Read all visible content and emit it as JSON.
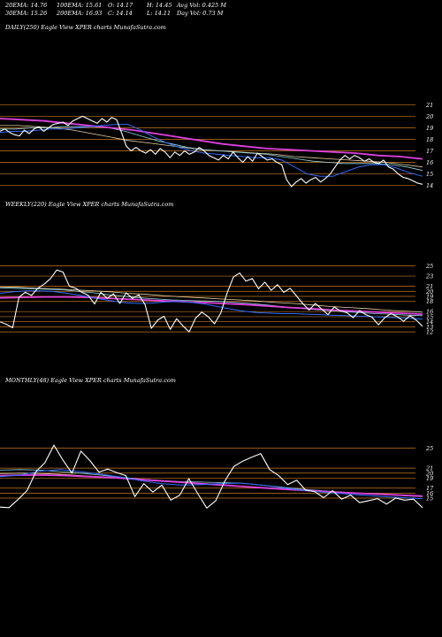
{
  "header": {
    "ema20": "20EMA: 14.76",
    "ema100": "100EMA: 15.61",
    "open": "O: 14.17",
    "high": "H: 14.45",
    "avgvol": "Avg Vol: 0.425 M",
    "ema30": "30EMA: 15.26",
    "ema200": "200EMA: 16.93",
    "close": "C: 14.14",
    "low": "L: 14.11",
    "dayvol": "Day Vol: 0.73 M"
  },
  "colors": {
    "background": "#000000",
    "price": "#ffffff",
    "level": "#c8781e",
    "ema_blue": "#2f6bff",
    "ema_cyan": "#8fd6e6",
    "ema_tan": "#e8d2a6",
    "ema_magenta": "#e040e0"
  },
  "chart_data": [
    {
      "type": "line",
      "label": "DAILY(250) Eagle   View  XPER charts MunafaSutra.com",
      "ylim": [
        13.2,
        21.8
      ],
      "y_ticks": [
        21,
        20,
        19,
        18,
        17,
        16,
        15,
        14
      ],
      "series": [
        {
          "role": "price",
          "values": [
            18.7,
            18.9,
            18.6,
            18.4,
            18.3,
            18.8,
            18.5,
            18.9,
            19.1,
            18.7,
            19.0,
            19.3,
            19.4,
            19.5,
            19.2,
            19.6,
            19.8,
            20.0,
            19.8,
            19.6,
            19.4,
            19.8,
            19.5,
            19.9,
            19.7,
            18.6,
            17.4,
            17.0,
            17.3,
            17.0,
            16.8,
            17.1,
            16.7,
            17.2,
            16.9,
            16.4,
            16.9,
            16.6,
            17.0,
            16.7,
            16.9,
            17.3,
            17.0,
            16.6,
            16.4,
            16.2,
            16.6,
            16.3,
            16.9,
            16.4,
            16.0,
            16.5,
            16.1,
            16.8,
            16.5,
            16.2,
            16.3,
            16.0,
            15.8,
            14.5,
            13.9,
            14.3,
            14.6,
            14.2,
            14.5,
            14.7,
            14.3,
            14.6,
            15.0,
            15.6,
            16.2,
            16.6,
            16.3,
            16.6,
            16.4,
            16.1,
            16.3,
            16.0,
            15.9,
            16.2,
            15.6,
            15.4,
            15.0,
            14.7,
            14.6,
            14.4,
            14.2,
            14.1
          ]
        },
        {
          "role": "ema_short",
          "values": [
            18.6,
            18.7,
            18.7,
            18.8,
            18.9,
            18.9,
            19.0,
            19.1,
            19.2,
            19.3,
            19.3,
            18.8,
            18.2,
            17.7,
            17.3,
            17.0,
            16.8,
            16.7,
            16.6,
            16.5,
            16.4,
            16.4,
            16.2,
            15.6,
            15.0,
            14.8,
            14.8,
            15.2,
            15.6,
            15.8,
            15.8,
            15.5,
            15.1,
            14.8
          ]
        },
        {
          "role": "ema_mid",
          "values": [
            18.9,
            18.9,
            19.0,
            19.0,
            19.1,
            19.1,
            19.1,
            19.0,
            18.7,
            18.3,
            17.9,
            17.6,
            17.3,
            17.1,
            17.0,
            16.9,
            16.8,
            16.7,
            16.5,
            16.3,
            16.1,
            16.0,
            15.9,
            15.9,
            15.9,
            15.8,
            15.6,
            15.3
          ]
        },
        {
          "role": "ema_long",
          "values": [
            19.2,
            19.2,
            19.1,
            19.0,
            18.8,
            18.5,
            18.2,
            17.9,
            17.7,
            17.5,
            17.3,
            17.1,
            17.0,
            16.9,
            16.8,
            16.7,
            16.5,
            16.4,
            16.3,
            16.2,
            16.1,
            16.0,
            15.8,
            15.6
          ]
        },
        {
          "role": "ema_200",
          "values": [
            19.8,
            19.7,
            19.6,
            19.4,
            19.2,
            19.0,
            18.8,
            18.5,
            18.2,
            17.9,
            17.6,
            17.4,
            17.2,
            17.1,
            17.0,
            16.9,
            16.8,
            16.6,
            16.5,
            16.3
          ]
        }
      ],
      "levels": [
        21,
        20,
        19,
        18,
        17,
        16,
        15,
        14
      ]
    },
    {
      "type": "line",
      "label": "WEEKLY(220) Eagle   View  XPER charts MunafaSutra.com",
      "ylim": [
        11.5,
        26.5
      ],
      "y_ticks": [
        25,
        23,
        21,
        20,
        19,
        18,
        16,
        15,
        14,
        13,
        12
      ],
      "series": [
        {
          "role": "price",
          "values": [
            14.0,
            13.5,
            12.8,
            18.8,
            19.8,
            19.2,
            20.6,
            21.4,
            22.5,
            24.2,
            23.8,
            21.0,
            20.6,
            19.8,
            19.2,
            17.5,
            19.8,
            18.6,
            19.5,
            17.6,
            19.7,
            18.6,
            19.3,
            17.4,
            12.7,
            14.3,
            15.1,
            12.5,
            14.6,
            13.2,
            12.0,
            14.7,
            15.9,
            15.0,
            13.6,
            15.7,
            19.6,
            22.8,
            23.6,
            22.0,
            22.5,
            20.5,
            21.8,
            20.2,
            21.3,
            19.8,
            20.6,
            19.1,
            17.6,
            16.3,
            17.6,
            16.5,
            15.4,
            16.9,
            16.1,
            15.8,
            14.8,
            16.2,
            15.4,
            14.9,
            13.4,
            14.8,
            15.6,
            15.0,
            14.1,
            15.2,
            14.3,
            13.1
          ]
        },
        {
          "role": "ema_short",
          "values": [
            19.6,
            19.9,
            20.1,
            20.1,
            20.0,
            19.7,
            19.3,
            18.9,
            18.4,
            18.0,
            17.7,
            17.6,
            17.7,
            17.9,
            18.0,
            17.8,
            17.5,
            17.0,
            16.5,
            16.1,
            15.8,
            15.7,
            15.6,
            15.6,
            15.5,
            15.4,
            15.3,
            15.2,
            15.1,
            15.0,
            14.9,
            14.8,
            14.7,
            14.5
          ]
        },
        {
          "role": "ema_mid",
          "values": [
            20.7,
            20.6,
            20.5,
            20.4,
            20.3,
            20.0,
            19.7,
            19.3,
            19.0,
            18.7,
            18.5,
            18.3,
            18.2,
            18.1,
            18.0,
            17.8,
            17.6,
            17.3,
            17.0,
            16.7,
            16.4,
            16.2,
            16.0,
            15.8,
            15.6,
            15.5,
            15.3,
            15.2
          ]
        },
        {
          "role": "ema_long",
          "values": [
            20.9,
            20.8,
            20.6,
            20.5,
            20.3,
            20.1,
            19.9,
            19.6,
            19.4,
            19.1,
            18.9,
            18.7,
            18.5,
            18.3,
            18.1,
            17.8,
            17.6,
            17.3,
            17.0,
            16.8,
            16.6,
            16.3,
            16.1,
            15.9
          ]
        },
        {
          "role": "ema_200",
          "values": [
            18.7,
            18.8,
            18.9,
            18.9,
            18.8,
            18.6,
            18.4,
            18.2,
            18.0,
            17.8,
            17.6,
            17.4,
            17.1,
            16.8,
            16.6,
            16.3,
            16.1,
            15.9,
            15.7,
            15.5
          ]
        }
      ],
      "levels": [
        25,
        23,
        21,
        20,
        19,
        18,
        16,
        15,
        14,
        13,
        12
      ]
    },
    {
      "type": "line",
      "label": "MONTHLY(48) Eagle   View  XPER charts MunafaSutra.com",
      "ylim": [
        12.0,
        26.5
      ],
      "y_ticks": [
        25,
        21,
        20,
        19,
        17,
        16,
        15
      ],
      "series": [
        {
          "role": "price",
          "values": [
            13.2,
            13.1,
            14.7,
            16.5,
            20.3,
            22.1,
            25.6,
            22.6,
            20.0,
            24.4,
            22.5,
            20.2,
            20.8,
            20.1,
            19.5,
            15.3,
            17.9,
            16.2,
            17.6,
            14.6,
            15.6,
            18.9,
            15.9,
            13.0,
            14.5,
            18.4,
            21.3,
            22.4,
            23.2,
            23.9,
            20.7,
            19.5,
            17.7,
            18.6,
            16.6,
            16.3,
            15.1,
            16.5,
            14.8,
            15.6,
            14.1,
            14.5,
            14.9,
            13.8,
            15.0,
            14.6,
            14.8,
            13.1
          ]
        },
        {
          "role": "ema_short",
          "values": [
            19.3,
            19.6,
            20.4,
            20.7,
            20.3,
            19.8,
            19.2,
            18.5,
            17.9,
            17.6,
            17.7,
            17.9,
            18.0,
            17.6,
            17.1,
            16.6,
            16.2,
            15.9,
            15.6,
            15.3,
            15.1,
            14.9
          ]
        },
        {
          "role": "ema_mid",
          "values": [
            20.6,
            20.7,
            20.6,
            20.3,
            20.0,
            19.6,
            19.2,
            18.8,
            18.5,
            18.3,
            18.2,
            18.1,
            18.0,
            17.6,
            17.2,
            16.8,
            16.5,
            16.2,
            15.9,
            15.7,
            15.5,
            15.3
          ]
        },
        {
          "role": "ema_long",
          "values": [
            19.9,
            20.0,
            19.9,
            19.7,
            19.4,
            19.1,
            18.8,
            18.5,
            18.2,
            17.9,
            17.6,
            17.3,
            17.0,
            16.7,
            16.4,
            16.2,
            16.0,
            15.8,
            15.6,
            15.4
          ]
        },
        {
          "role": "ema_200",
          "values": [
            19.5,
            19.6,
            19.6,
            19.5,
            19.3,
            19.1,
            18.8,
            18.5,
            18.2,
            17.9,
            17.6,
            17.3,
            17.0,
            16.7,
            16.5,
            16.2,
            16.0,
            15.8,
            15.6,
            15.4
          ]
        }
      ],
      "levels": [
        25,
        21,
        20,
        19,
        17,
        16,
        15
      ]
    }
  ]
}
